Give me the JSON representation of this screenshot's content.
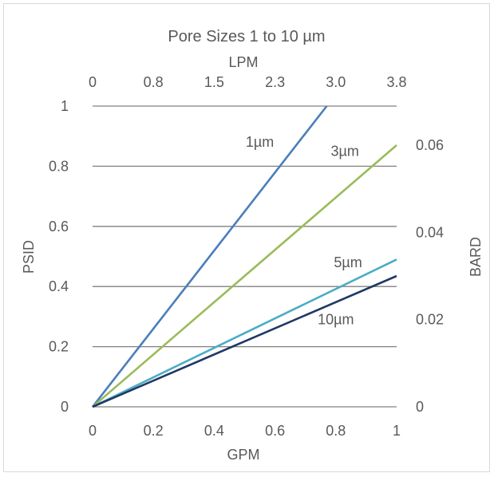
{
  "chart_data": {
    "type": "line",
    "title": "Pore Sizes 1 to 10 µm",
    "xlabel": "GPM",
    "ylabel": "PSID",
    "x2label": "LPM",
    "y2label": "BARD",
    "xlim": [
      0,
      1
    ],
    "ylim": [
      0,
      1
    ],
    "y2lim": [
      0,
      0.069
    ],
    "x_ticks": [
      "0",
      "0.2",
      "0.4",
      "0.6",
      "0.8",
      "1"
    ],
    "y_ticks": [
      "0",
      "0.2",
      "0.4",
      "0.6",
      "0.8",
      "1"
    ],
    "x2_ticks": [
      "0",
      "0.8",
      "1.5",
      "2.3",
      "3.0",
      "3.8"
    ],
    "y2_ticks": [
      "0",
      "0.02",
      "0.04",
      "0.06"
    ],
    "y2_tick_values": [
      0,
      0.02,
      0.04,
      0.06
    ],
    "grid": true,
    "legend": "none",
    "series": [
      {
        "name": "1µm",
        "color": "#4a7ebb",
        "x": [
          0,
          0.77
        ],
        "y": [
          0,
          1.0
        ]
      },
      {
        "name": "3µm",
        "color": "#9bbb59",
        "x": [
          0,
          1.0
        ],
        "y": [
          0,
          0.87
        ]
      },
      {
        "name": "5µm",
        "color": "#4bacc6",
        "x": [
          0,
          1.0
        ],
        "y": [
          0,
          0.49
        ]
      },
      {
        "name": "10µm",
        "color": "#1f3864",
        "x": [
          0,
          1.0
        ],
        "y": [
          0,
          0.435
        ]
      }
    ],
    "annotations": [
      {
        "text": "1µm",
        "x": 0.55,
        "y": 0.88
      },
      {
        "text": "3µm",
        "x": 0.83,
        "y": 0.85
      },
      {
        "text": "5µm",
        "x": 0.84,
        "y": 0.48
      },
      {
        "text": "10µm",
        "x": 0.8,
        "y": 0.29
      }
    ]
  }
}
